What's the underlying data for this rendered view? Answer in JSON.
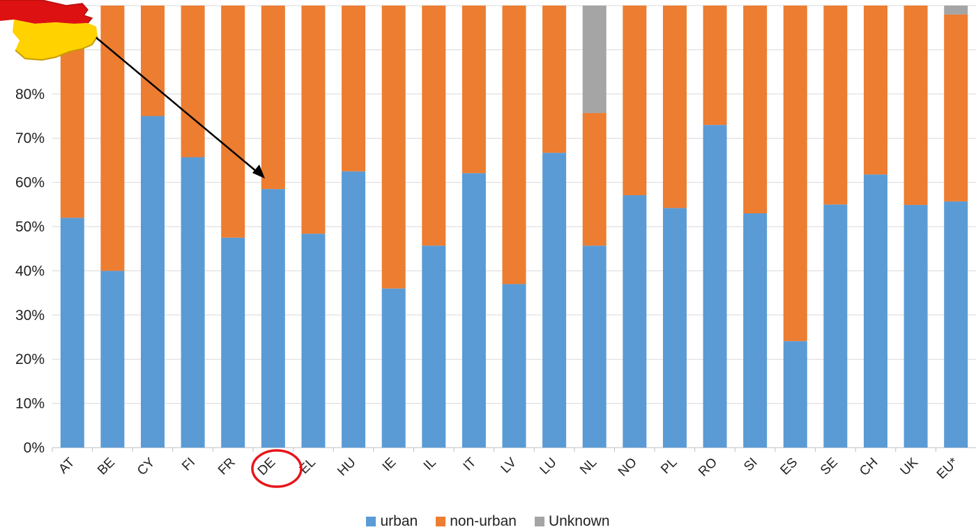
{
  "chart_data": {
    "type": "bar",
    "stacked": true,
    "percent": true,
    "categories": [
      "AT",
      "BE",
      "CY",
      "FI",
      "FR",
      "DE",
      "EL",
      "HU",
      "IE",
      "IL",
      "IT",
      "LV",
      "LU",
      "NL",
      "NO",
      "PL",
      "RO",
      "SI",
      "ES",
      "SE",
      "CH",
      "UK",
      "EU*"
    ],
    "series": [
      {
        "name": "urban",
        "color": "#5b9bd5",
        "values": [
          52,
          40,
          75,
          65.7,
          47.5,
          58.5,
          48.4,
          62.5,
          36,
          45.7,
          62.1,
          37,
          66.7,
          45.7,
          57.1,
          54.2,
          73,
          53,
          24.1,
          55,
          61.8,
          54.9,
          55.7
        ]
      },
      {
        "name": "non-urban",
        "color": "#ed7d31",
        "values": [
          48,
          60,
          25,
          34.3,
          52.5,
          41.5,
          51.6,
          37.5,
          64,
          54.3,
          37.9,
          63,
          33.3,
          30,
          42.9,
          45.8,
          27,
          47,
          75.9,
          45,
          38.2,
          45.1,
          42.3
        ]
      },
      {
        "name": "Unknown",
        "color": "#a5a5a5",
        "values": [
          0,
          0,
          0,
          0,
          0,
          0,
          0,
          0,
          0,
          0,
          0,
          0,
          0,
          24.3,
          0,
          0,
          0,
          0,
          0,
          0,
          0,
          0,
          2
        ]
      }
    ],
    "y_ticks": [
      "0%",
      "10%",
      "20%",
      "30%",
      "40%",
      "50%",
      "60%",
      "70%",
      "80%"
    ],
    "ylim": [
      0,
      100
    ],
    "grid": true,
    "legend_position": "bottom",
    "highlight": {
      "category": "DE",
      "marker": "red-circle",
      "arrow": "from-flag-to-DE-bar"
    },
    "annotation_icon": "germany-flag-map-icon"
  }
}
